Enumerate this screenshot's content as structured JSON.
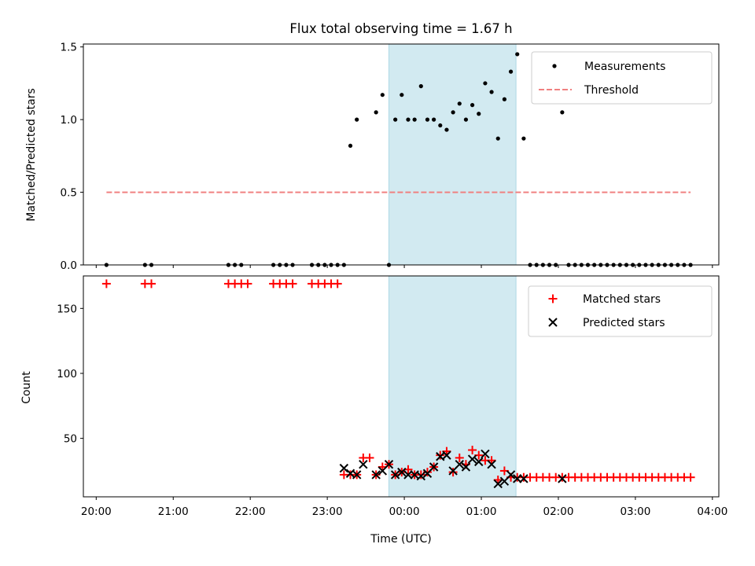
{
  "colors": {
    "background": "#ffffff",
    "shade": "#add8e6",
    "measurement": "#000000",
    "threshold": "#f08080",
    "matched": "#ff0000",
    "predicted": "#000000"
  },
  "chart_data": [
    {
      "type": "scatter",
      "panel": "top",
      "title": "Flux total observing time = 1.67 h",
      "xlabel": "",
      "ylabel": "Matched/Predicted stars",
      "xlim": [
        "19:50",
        "04:05"
      ],
      "ylim": [
        0,
        1.52
      ],
      "xticks": [
        "20:00",
        "21:00",
        "22:00",
        "23:00",
        "00:00",
        "01:00",
        "02:00",
        "03:00",
        "04:00"
      ],
      "yticks": [
        "0.0",
        "0.5",
        "1.0",
        "1.5"
      ],
      "grid": false,
      "legend": "top-right",
      "shaded_interval": [
        "23:48",
        "01:27"
      ],
      "series": [
        {
          "name": "Measurements",
          "marker": "dot",
          "x": [
            "20:08",
            "20:38",
            "20:43",
            "21:43",
            "21:48",
            "21:53",
            "22:18",
            "22:23",
            "22:28",
            "22:33",
            "22:48",
            "22:53",
            "22:58",
            "23:03",
            "23:08",
            "23:13",
            "23:18",
            "23:23",
            "23:38",
            "23:43",
            "23:48",
            "23:53",
            "23:58",
            "00:03",
            "00:08",
            "00:13",
            "00:18",
            "00:23",
            "00:28",
            "00:33",
            "00:38",
            "00:43",
            "00:48",
            "00:53",
            "00:58",
            "01:03",
            "01:08",
            "01:13",
            "01:18",
            "01:23",
            "01:28",
            "01:33",
            "01:38",
            "01:43",
            "01:48",
            "01:53",
            "01:58",
            "02:03",
            "02:08",
            "02:13",
            "02:18",
            "02:23",
            "02:28",
            "02:33",
            "02:38",
            "02:43",
            "02:48",
            "02:53",
            "02:58",
            "03:03",
            "03:08",
            "03:13",
            "03:18",
            "03:23",
            "03:28",
            "03:33",
            "03:38",
            "03:43"
          ],
          "y": [
            0,
            0,
            0,
            0,
            0,
            0,
            0,
            0,
            0,
            0,
            0,
            0,
            0,
            0,
            0,
            0,
            0.82,
            1.0,
            1.05,
            1.17,
            0,
            1.0,
            1.17,
            1.0,
            1.0,
            1.23,
            1.0,
            1.0,
            0.96,
            0.93,
            1.05,
            1.11,
            1.0,
            1.1,
            1.04,
            1.25,
            1.19,
            0.87,
            1.14,
            1.33,
            1.45,
            0.87,
            0,
            0,
            0,
            0,
            0,
            1.05,
            0,
            0,
            0,
            0,
            0,
            0,
            0,
            0,
            0,
            0,
            0,
            0,
            0,
            0,
            0,
            0,
            0,
            0,
            0,
            0
          ]
        },
        {
          "name": "Threshold",
          "marker": "dashed-line",
          "x": [
            "20:08",
            "03:43"
          ],
          "y": [
            0.5,
            0.5
          ]
        }
      ]
    },
    {
      "type": "scatter",
      "panel": "bottom",
      "xlabel": "Time (UTC)",
      "ylabel": "Count",
      "xlim": [
        "19:50",
        "04:05"
      ],
      "ylim": [
        5,
        175
      ],
      "xticks": [
        "20:00",
        "21:00",
        "22:00",
        "23:00",
        "00:00",
        "01:00",
        "02:00",
        "03:00",
        "04:00"
      ],
      "yticks": [
        "50",
        "100",
        "150"
      ],
      "grid": false,
      "legend": "top-right",
      "shaded_interval": [
        "23:48",
        "01:27"
      ],
      "series": [
        {
          "name": "Matched stars",
          "marker": "plus",
          "x": [
            "20:08",
            "20:38",
            "20:43",
            "21:43",
            "21:48",
            "21:53",
            "21:58",
            "22:18",
            "22:23",
            "22:28",
            "22:33",
            "22:48",
            "22:53",
            "22:58",
            "23:03",
            "23:08",
            "23:13",
            "23:18",
            "23:23",
            "23:28",
            "23:33",
            "23:38",
            "23:43",
            "23:48",
            "23:53",
            "23:58",
            "00:03",
            "00:08",
            "00:13",
            "00:18",
            "00:23",
            "00:28",
            "00:33",
            "00:38",
            "00:43",
            "00:48",
            "00:53",
            "00:58",
            "01:03",
            "01:08",
            "01:13",
            "01:18",
            "01:23",
            "01:28",
            "01:33",
            "01:38",
            "01:43",
            "01:48",
            "01:53",
            "01:58",
            "02:03",
            "02:08",
            "02:13",
            "02:18",
            "02:23",
            "02:28",
            "02:33",
            "02:38",
            "02:43",
            "02:48",
            "02:53",
            "02:58",
            "03:03",
            "03:08",
            "03:13",
            "03:18",
            "03:23",
            "03:28",
            "03:33",
            "03:38",
            "03:43"
          ],
          "y": [
            169,
            169,
            169,
            169,
            169,
            169,
            169,
            169,
            169,
            169,
            169,
            169,
            169,
            169,
            169,
            169,
            22,
            22,
            22,
            35,
            35,
            22,
            28,
            30,
            22,
            24,
            26,
            22,
            22,
            24,
            28,
            37,
            40,
            24,
            35,
            30,
            41,
            37,
            33,
            33,
            18,
            25,
            20,
            20,
            20,
            20,
            20,
            20,
            20,
            20,
            20,
            20,
            20,
            20,
            20,
            20,
            20,
            20,
            20,
            20,
            20,
            20,
            20,
            20,
            20,
            20,
            20,
            20,
            20,
            20,
            20
          ]
        },
        {
          "name": "Predicted stars",
          "marker": "x",
          "x": [
            "23:13",
            "23:18",
            "23:23",
            "23:28",
            "23:38",
            "23:43",
            "23:48",
            "23:53",
            "23:58",
            "00:03",
            "00:08",
            "00:13",
            "00:18",
            "00:23",
            "00:28",
            "00:33",
            "00:38",
            "00:43",
            "00:48",
            "00:53",
            "00:58",
            "01:03",
            "01:08",
            "01:13",
            "01:18",
            "01:23",
            "01:28",
            "01:33",
            "02:03"
          ],
          "y": [
            27,
            23,
            22,
            30,
            22,
            25,
            30,
            22,
            24,
            22,
            22,
            21,
            23,
            28,
            36,
            37,
            25,
            30,
            28,
            34,
            32,
            38,
            30,
            15,
            17,
            22,
            19,
            19,
            19
          ]
        }
      ]
    }
  ]
}
